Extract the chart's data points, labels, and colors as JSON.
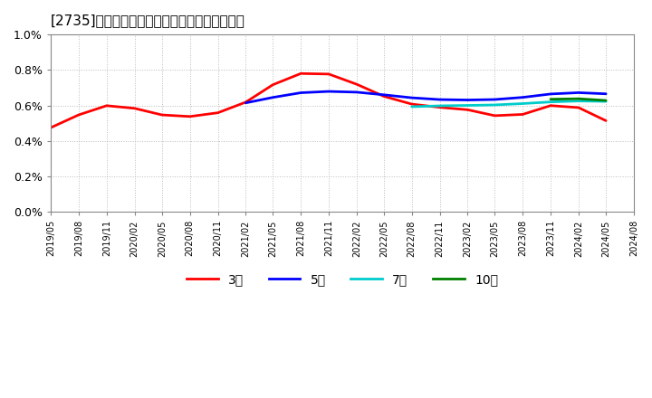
{
  "title": "[2735]　当期純利益マージンの標準偏差の推移",
  "background_color": "#ffffff",
  "plot_bg_color": "#ffffff",
  "grid_color": "#aaaaaa",
  "ylim": [
    0.0,
    0.01
  ],
  "yticks": [
    0.0,
    0.002,
    0.004,
    0.006,
    0.008,
    0.01
  ],
  "ytick_labels": [
    "0.0%",
    "0.2%",
    "0.4%",
    "0.6%",
    "0.8%",
    "1.0%"
  ],
  "series": {
    "3年": {
      "color": "#ff0000",
      "linewidth": 2.0,
      "data": [
        [
          "2019/05",
          0.0044
        ],
        [
          "2019/08",
          0.0056
        ],
        [
          "2019/11",
          0.0063
        ],
        [
          "2020/02",
          0.0059
        ],
        [
          "2020/05",
          0.0053
        ],
        [
          "2020/08",
          0.0053
        ],
        [
          "2020/11",
          0.0055
        ],
        [
          "2021/02",
          0.0059
        ],
        [
          "2021/05",
          0.0074
        ],
        [
          "2021/08",
          0.008
        ],
        [
          "2021/11",
          0.008
        ],
        [
          "2022/02",
          0.0072
        ],
        [
          "2022/05",
          0.0064
        ],
        [
          "2022/08",
          0.006
        ],
        [
          "2022/11",
          0.0058
        ],
        [
          "2023/02",
          0.006
        ],
        [
          "2023/05",
          0.0052
        ],
        [
          "2023/08",
          0.0052
        ],
        [
          "2023/11",
          0.0063
        ],
        [
          "2024/02",
          0.0063
        ],
        [
          "2024/05",
          0.0047
        ]
      ]
    },
    "5年": {
      "color": "#0000ff",
      "linewidth": 2.0,
      "data": [
        [
          "2021/02",
          0.006
        ],
        [
          "2021/05",
          0.0065
        ],
        [
          "2021/08",
          0.0068
        ],
        [
          "2021/11",
          0.0068
        ],
        [
          "2022/02",
          0.0068
        ],
        [
          "2022/05",
          0.0066
        ],
        [
          "2022/08",
          0.0064
        ],
        [
          "2022/11",
          0.0063
        ],
        [
          "2023/02",
          0.0063
        ],
        [
          "2023/05",
          0.0063
        ],
        [
          "2023/08",
          0.0064
        ],
        [
          "2023/11",
          0.0067
        ],
        [
          "2024/02",
          0.0068
        ],
        [
          "2024/05",
          0.0066
        ]
      ]
    },
    "7年": {
      "color": "#00cccc",
      "linewidth": 2.0,
      "data": [
        [
          "2022/08",
          0.0059
        ],
        [
          "2022/11",
          0.006
        ],
        [
          "2023/02",
          0.006
        ],
        [
          "2023/05",
          0.006
        ],
        [
          "2023/08",
          0.0061
        ],
        [
          "2023/11",
          0.0062
        ],
        [
          "2024/02",
          0.0063
        ],
        [
          "2024/05",
          0.0062
        ]
      ]
    },
    "10年": {
      "color": "#008000",
      "linewidth": 2.0,
      "data": [
        [
          "2023/11",
          0.0063
        ],
        [
          "2024/02",
          0.0065
        ],
        [
          "2024/05",
          0.0062
        ]
      ]
    }
  },
  "xtick_labels": [
    "2019/05",
    "2019/08",
    "2019/11",
    "2020/02",
    "2020/05",
    "2020/08",
    "2020/11",
    "2021/02",
    "2021/05",
    "2021/08",
    "2021/11",
    "2022/02",
    "2022/05",
    "2022/08",
    "2022/11",
    "2023/02",
    "2023/05",
    "2023/08",
    "2023/11",
    "2024/02",
    "2024/05",
    "2024/08"
  ],
  "legend_labels": [
    "3年",
    "5年",
    "7年",
    "10年"
  ],
  "legend_colors": [
    "#ff0000",
    "#0000ff",
    "#00cccc",
    "#008000"
  ]
}
